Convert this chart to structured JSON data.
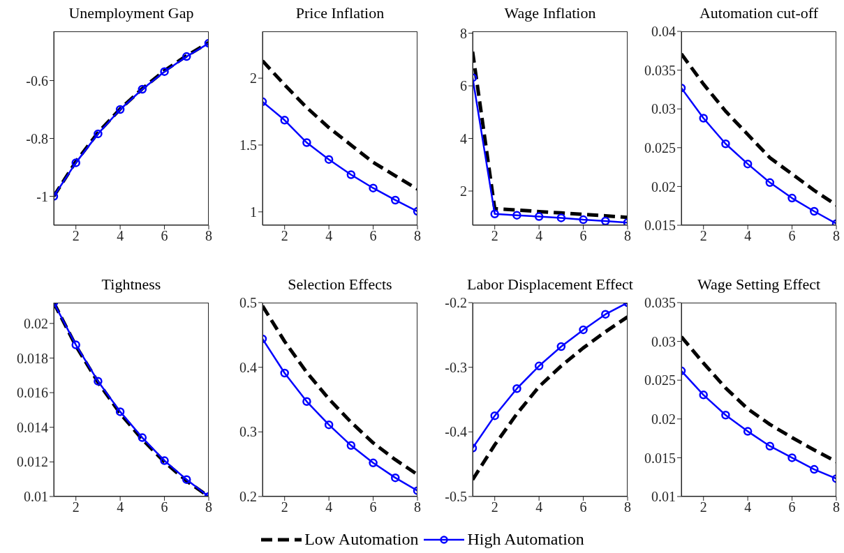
{
  "chart_data": [
    {
      "type": "line",
      "title": "Unemployment Gap",
      "x": [
        1,
        2,
        3,
        4,
        5,
        6,
        7,
        8
      ],
      "xlim": [
        1,
        8
      ],
      "xticks": [
        2,
        4,
        6,
        8
      ],
      "ylim": [
        -1.1,
        -0.43
      ],
      "yticks": [
        -1,
        -0.8,
        -0.6
      ],
      "legend": "bottom",
      "series": [
        {
          "name": "Low Automation",
          "color": "#000000",
          "line_style": "dashed",
          "marker": "none",
          "values": [
            -1.0,
            -0.88,
            -0.78,
            -0.698,
            -0.628,
            -0.566,
            -0.514,
            -0.469
          ]
        },
        {
          "name": "High Automation",
          "color": "#0000ff",
          "line_style": "solid",
          "marker": "circle",
          "values": [
            -1.0,
            -0.884,
            -0.784,
            -0.7,
            -0.63,
            -0.569,
            -0.517,
            -0.471
          ]
        }
      ]
    },
    {
      "type": "line",
      "title": "Price Inflation",
      "x": [
        1,
        2,
        3,
        4,
        5,
        6,
        7,
        8
      ],
      "xlim": [
        1,
        8
      ],
      "xticks": [
        2,
        4,
        6,
        8
      ],
      "ylim": [
        0.9,
        2.35
      ],
      "yticks": [
        1,
        1.5,
        2
      ],
      "series": [
        {
          "color": "#000000",
          "line_style": "dashed",
          "marker": "none",
          "values": [
            2.13,
            1.95,
            1.78,
            1.63,
            1.5,
            1.37,
            1.27,
            1.17
          ]
        },
        {
          "color": "#0000ff",
          "line_style": "solid",
          "marker": "circle",
          "values": [
            1.824,
            1.686,
            1.518,
            1.392,
            1.278,
            1.178,
            1.088,
            1.004
          ]
        }
      ]
    },
    {
      "type": "line",
      "title": "Wage Inflation",
      "x": [
        1,
        2,
        3,
        4,
        5,
        6,
        7,
        8
      ],
      "xlim": [
        1,
        8
      ],
      "xticks": [
        2,
        4,
        6,
        8
      ],
      "ylim": [
        0.7,
        8.07
      ],
      "yticks": [
        2,
        4,
        6,
        8
      ],
      "series": [
        {
          "color": "#000000",
          "line_style": "dashed",
          "marker": "none",
          "values": [
            7.3,
            1.33,
            1.28,
            1.22,
            1.17,
            1.11,
            1.06,
            1.0
          ]
        },
        {
          "color": "#0000ff",
          "line_style": "solid",
          "marker": "circle",
          "values": [
            6.31,
            1.13,
            1.08,
            1.03,
            0.98,
            0.91,
            0.86,
            0.8
          ]
        }
      ]
    },
    {
      "type": "line",
      "title": "Automation cut-off",
      "x": [
        1,
        2,
        3,
        4,
        5,
        6,
        7,
        8
      ],
      "xlim": [
        1,
        8
      ],
      "xticks": [
        2,
        4,
        6,
        8
      ],
      "ylim": [
        0.015,
        0.04
      ],
      "yticks": [
        0.015,
        0.02,
        0.025,
        0.03,
        0.035,
        0.04
      ],
      "series": [
        {
          "color": "#000000",
          "line_style": "dashed",
          "marker": "none",
          "values": [
            0.0371,
            0.0332,
            0.0297,
            0.0267,
            0.0237,
            0.0216,
            0.0195,
            0.0176
          ]
        },
        {
          "color": "#0000ff",
          "line_style": "solid",
          "marker": "circle",
          "values": [
            0.0327,
            0.0288,
            0.0255,
            0.0229,
            0.0205,
            0.0185,
            0.0168,
            0.0152
          ]
        }
      ]
    },
    {
      "type": "line",
      "title": "Tightness",
      "x": [
        1,
        2,
        3,
        4,
        5,
        6,
        7,
        8
      ],
      "xlim": [
        1,
        8
      ],
      "xticks": [
        2,
        4,
        6,
        8
      ],
      "ylim": [
        0.01,
        0.0212
      ],
      "yticks": [
        0.01,
        0.012,
        0.014,
        0.016,
        0.018,
        0.02
      ],
      "series": [
        {
          "color": "#000000",
          "line_style": "dashed",
          "marker": "none",
          "values": [
            0.0212,
            0.0187,
            0.0166,
            0.0148,
            0.0133,
            0.012,
            0.0109,
            0.01
          ]
        },
        {
          "color": "#0000ff",
          "line_style": "solid",
          "marker": "circle",
          "values": [
            0.0212,
            0.01876,
            0.01666,
            0.0149,
            0.0134,
            0.01207,
            0.01098,
            0.01
          ]
        }
      ]
    },
    {
      "type": "line",
      "title": "Selection Effects",
      "x": [
        1,
        2,
        3,
        4,
        5,
        6,
        7,
        8
      ],
      "xlim": [
        1,
        8
      ],
      "xticks": [
        2,
        4,
        6,
        8
      ],
      "ylim": [
        0.2,
        0.5
      ],
      "yticks": [
        0.2,
        0.3,
        0.4,
        0.5
      ],
      "series": [
        {
          "color": "#000000",
          "line_style": "dashed",
          "marker": "none",
          "values": [
            0.495,
            0.44,
            0.392,
            0.351,
            0.315,
            0.283,
            0.257,
            0.234
          ]
        },
        {
          "color": "#0000ff",
          "line_style": "solid",
          "marker": "circle",
          "values": [
            0.444,
            0.391,
            0.347,
            0.311,
            0.279,
            0.252,
            0.229,
            0.209
          ]
        }
      ]
    },
    {
      "type": "line",
      "title": "Labor Displacement Effect",
      "x": [
        1,
        2,
        3,
        4,
        5,
        6,
        7,
        8
      ],
      "xlim": [
        1,
        8
      ],
      "xticks": [
        2,
        4,
        6,
        8
      ],
      "ylim": [
        -0.5,
        -0.2
      ],
      "yticks": [
        -0.5,
        -0.4,
        -0.3,
        -0.2
      ],
      "series": [
        {
          "color": "#000000",
          "line_style": "dashed",
          "marker": "none",
          "values": [
            -0.474,
            -0.42,
            -0.372,
            -0.33,
            -0.298,
            -0.27,
            -0.245,
            -0.222
          ]
        },
        {
          "color": "#0000ff",
          "line_style": "solid",
          "marker": "circle",
          "values": [
            -0.425,
            -0.375,
            -0.333,
            -0.298,
            -0.268,
            -0.242,
            -0.218,
            -0.2
          ]
        }
      ]
    },
    {
      "type": "line",
      "title": "Wage Setting Effect",
      "x": [
        1,
        2,
        3,
        4,
        5,
        6,
        7,
        8
      ],
      "xlim": [
        1,
        8
      ],
      "xticks": [
        2,
        4,
        6,
        8
      ],
      "ylim": [
        0.01,
        0.035
      ],
      "yticks": [
        0.01,
        0.015,
        0.02,
        0.025,
        0.03,
        0.035
      ],
      "series": [
        {
          "color": "#000000",
          "line_style": "dashed",
          "marker": "none",
          "values": [
            0.0306,
            0.0272,
            0.024,
            0.0213,
            0.0193,
            0.0176,
            0.016,
            0.0145
          ]
        },
        {
          "color": "#0000ff",
          "line_style": "solid",
          "marker": "circle",
          "values": [
            0.0262,
            0.0231,
            0.0205,
            0.0184,
            0.0165,
            0.015,
            0.0135,
            0.0123
          ]
        }
      ]
    }
  ]
}
